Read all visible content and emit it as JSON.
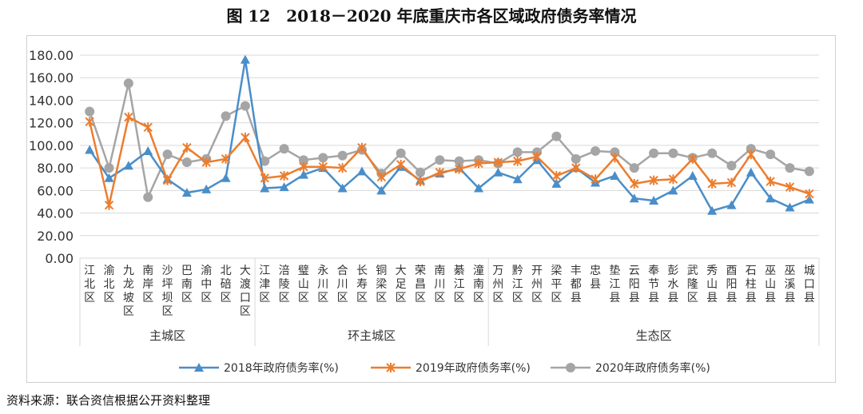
{
  "title": "图 12　2018－2020 年底重庆市各区域政府债务率情况",
  "source": "资料来源：联合资信根据公开资料整理",
  "chart_data": {
    "type": "line",
    "ylim": [
      0,
      180
    ],
    "yticks": [
      "0.00",
      "20.00",
      "40.00",
      "60.00",
      "80.00",
      "100.00",
      "120.00",
      "140.00",
      "160.00",
      "180.00"
    ],
    "grid": true,
    "legend_position": "bottom",
    "categories": [
      "江北区",
      "渝北区",
      "九龙坡区",
      "南岸区",
      "沙坪坝区",
      "巴南区",
      "渝中区",
      "北碚区",
      "大渡口区",
      "江津区",
      "涪陵区",
      "璧山区",
      "永川区",
      "合川区",
      "长寿区",
      "铜梁区",
      "大足区",
      "荣昌区",
      "南川区",
      "綦江区",
      "潼南区",
      "万州区",
      "黔江区",
      "开州区",
      "梁平区",
      "丰都县",
      "忠县",
      "垫江县",
      "云阳县",
      "奉节县",
      "彭水县",
      "武隆区",
      "秀山县",
      "酉阳县",
      "石柱县",
      "巫山县",
      "巫溪县",
      "城口县"
    ],
    "groups": [
      {
        "name": "主城区",
        "start": 0,
        "end": 8
      },
      {
        "name": "环主城区",
        "start": 9,
        "end": 20
      },
      {
        "name": "生态区",
        "start": 21,
        "end": 37
      }
    ],
    "series": [
      {
        "name": "2018年政府债务率(%)",
        "color": "#4a8ec9",
        "marker": "triangle",
        "values": [
          96,
          71,
          82,
          95,
          70,
          58,
          61,
          71,
          176,
          62,
          63,
          74,
          80,
          62,
          77,
          60,
          81,
          69,
          75,
          80,
          62,
          76,
          70,
          87,
          66,
          80,
          67,
          73,
          53,
          51,
          60,
          73,
          42,
          47,
          76,
          53,
          45,
          52
        ]
      },
      {
        "name": "2019年政府债务率(%)",
        "color": "#ec7d2e",
        "marker": "x",
        "values": [
          121,
          47,
          125,
          116,
          69,
          98,
          85,
          88,
          107,
          71,
          73,
          81,
          81,
          80,
          98,
          72,
          83,
          68,
          76,
          79,
          84,
          85,
          86,
          90,
          73,
          80,
          70,
          89,
          66,
          69,
          70,
          88,
          66,
          67,
          92,
          68,
          63,
          57
        ]
      },
      {
        "name": "2020年政府债务率(%)",
        "color": "#a5a5a5",
        "marker": "circle",
        "values": [
          130,
          80,
          155,
          54,
          92,
          85,
          88,
          126,
          135,
          86,
          97,
          87,
          89,
          91,
          96,
          75,
          93,
          76,
          87,
          86,
          87,
          84,
          94,
          94,
          108,
          88,
          95,
          94,
          80,
          93,
          93,
          89,
          93,
          82,
          97,
          92,
          80,
          77
        ]
      }
    ]
  }
}
